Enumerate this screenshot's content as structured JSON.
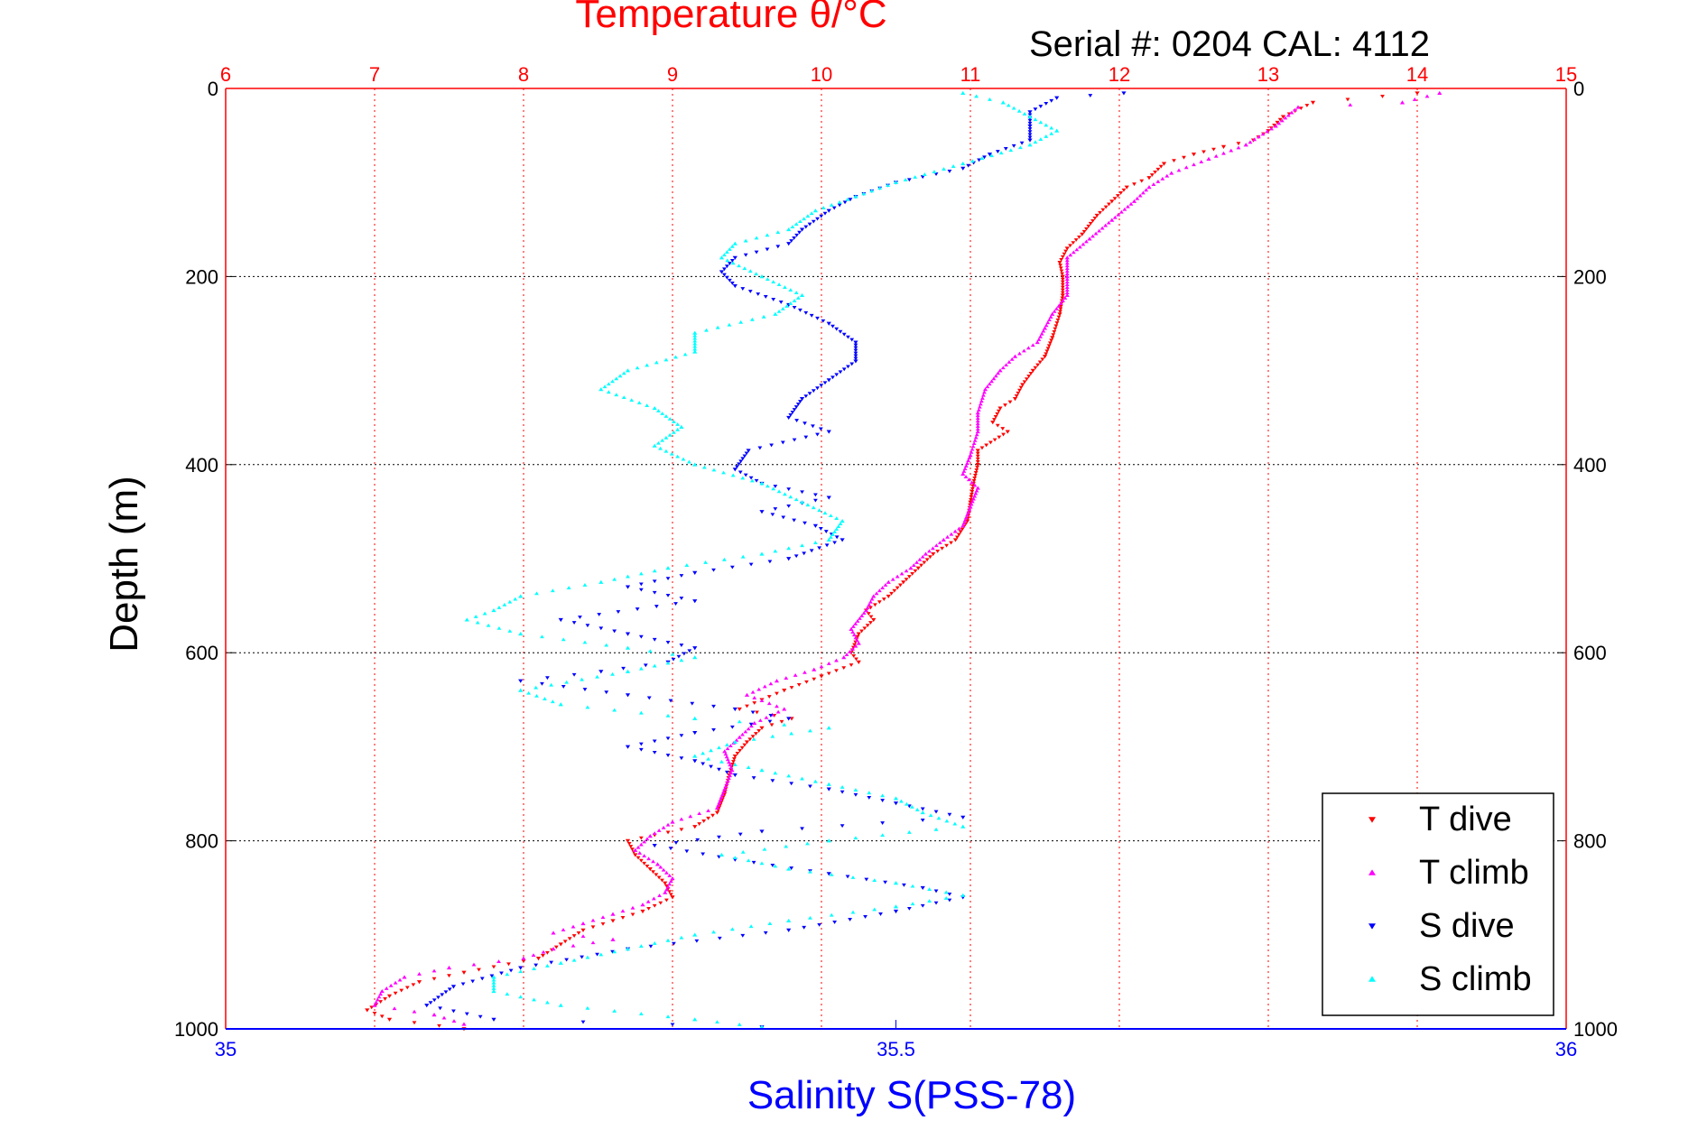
{
  "colors": {
    "t_dive": "#ff0000",
    "t_climb": "#ff00ff",
    "s_dive": "#0000ff",
    "s_climb": "#00ffff",
    "grid_temperature": "#ff0000",
    "grid_depth": "#000000",
    "plot_frame": "#ff0000",
    "bottom_axis": "#0000ff"
  },
  "chart_data": {
    "type": "scatter",
    "title": "Temperature θ/°C",
    "annotation": "Serial #: 0204  CAL: 4112",
    "ylabel": "Depth (m)",
    "xlabel_bottom": "Salinity S(PSS-78)",
    "ylim": [
      1000,
      0
    ],
    "y_reversed": true,
    "x_top_lim": [
      6,
      15
    ],
    "x_bottom_lim": [
      35,
      36
    ],
    "y_ticks": [
      "0",
      "200",
      "400",
      "600",
      "800",
      "1000"
    ],
    "x_top_ticks": [
      "6",
      "7",
      "8",
      "9",
      "10",
      "11",
      "12",
      "13",
      "14",
      "15"
    ],
    "x_bottom_ticks": [
      "35",
      "35.5",
      "36"
    ],
    "grid": true,
    "legend_position": "bottom-right",
    "series": [
      {
        "name": "T dive",
        "axis": "temperature",
        "marker": "triangle-down",
        "points": [
          [
            14.0,
            5
          ],
          [
            13.3,
            15
          ],
          [
            13.1,
            30
          ],
          [
            13.0,
            45
          ],
          [
            12.9,
            55
          ],
          [
            12.7,
            62
          ],
          [
            12.5,
            70
          ],
          [
            12.3,
            80
          ],
          [
            12.2,
            95
          ],
          [
            12.05,
            105
          ],
          [
            11.95,
            120
          ],
          [
            11.85,
            135
          ],
          [
            11.75,
            155
          ],
          [
            11.65,
            170
          ],
          [
            11.6,
            185
          ],
          [
            11.62,
            200
          ],
          [
            11.62,
            220
          ],
          [
            11.6,
            240
          ],
          [
            11.55,
            265
          ],
          [
            11.5,
            285
          ],
          [
            11.42,
            300
          ],
          [
            11.35,
            315
          ],
          [
            11.3,
            330
          ],
          [
            11.2,
            340
          ],
          [
            11.15,
            355
          ],
          [
            11.25,
            365
          ],
          [
            11.05,
            385
          ],
          [
            11.05,
            400
          ],
          [
            11.02,
            420
          ],
          [
            11.0,
            440
          ],
          [
            10.98,
            460
          ],
          [
            10.9,
            480
          ],
          [
            10.75,
            495
          ],
          [
            10.65,
            510
          ],
          [
            10.55,
            525
          ],
          [
            10.45,
            540
          ],
          [
            10.3,
            555
          ],
          [
            10.35,
            565
          ],
          [
            10.25,
            580
          ],
          [
            10.2,
            600
          ],
          [
            10.25,
            610
          ],
          [
            10.0,
            625
          ],
          [
            9.75,
            640
          ],
          [
            9.6,
            650
          ],
          [
            9.45,
            660
          ],
          [
            9.8,
            670
          ],
          [
            9.6,
            680
          ],
          [
            9.5,
            695
          ],
          [
            9.42,
            710
          ],
          [
            9.38,
            730
          ],
          [
            9.35,
            750
          ],
          [
            9.3,
            770
          ],
          [
            9.15,
            785
          ],
          [
            8.7,
            800
          ],
          [
            8.75,
            815
          ],
          [
            8.85,
            830
          ],
          [
            8.95,
            845
          ],
          [
            9.0,
            860
          ],
          [
            8.8,
            875
          ],
          [
            8.6,
            885
          ],
          [
            8.4,
            895
          ],
          [
            8.25,
            910
          ],
          [
            8.1,
            925
          ],
          [
            7.6,
            940
          ],
          [
            7.3,
            950
          ],
          [
            7.1,
            965
          ],
          [
            6.95,
            980
          ],
          [
            7.1,
            990
          ],
          [
            7.6,
            1000
          ]
        ]
      },
      {
        "name": "T climb",
        "axis": "temperature",
        "marker": "triangle-up",
        "points": [
          [
            14.15,
            5
          ],
          [
            13.9,
            15
          ],
          [
            13.2,
            20
          ],
          [
            13.05,
            40
          ],
          [
            12.85,
            60
          ],
          [
            12.6,
            75
          ],
          [
            12.35,
            90
          ],
          [
            12.2,
            105
          ],
          [
            12.1,
            120
          ],
          [
            11.95,
            140
          ],
          [
            11.8,
            160
          ],
          [
            11.65,
            180
          ],
          [
            11.65,
            200
          ],
          [
            11.65,
            220
          ],
          [
            11.55,
            240
          ],
          [
            11.5,
            255
          ],
          [
            11.45,
            270
          ],
          [
            11.3,
            285
          ],
          [
            11.2,
            300
          ],
          [
            11.1,
            320
          ],
          [
            11.05,
            345
          ],
          [
            11.05,
            365
          ],
          [
            11.0,
            390
          ],
          [
            10.95,
            410
          ],
          [
            11.05,
            425
          ],
          [
            11.0,
            445
          ],
          [
            10.95,
            465
          ],
          [
            10.82,
            480
          ],
          [
            10.7,
            495
          ],
          [
            10.6,
            510
          ],
          [
            10.45,
            525
          ],
          [
            10.35,
            540
          ],
          [
            10.3,
            555
          ],
          [
            10.2,
            575
          ],
          [
            10.25,
            590
          ],
          [
            10.15,
            605
          ],
          [
            9.95,
            618
          ],
          [
            9.7,
            630
          ],
          [
            9.5,
            645
          ],
          [
            9.75,
            660
          ],
          [
            9.55,
            675
          ],
          [
            9.45,
            690
          ],
          [
            9.35,
            705
          ],
          [
            9.4,
            725
          ],
          [
            9.35,
            745
          ],
          [
            9.3,
            765
          ],
          [
            9.0,
            780
          ],
          [
            8.85,
            795
          ],
          [
            8.75,
            810
          ],
          [
            8.9,
            825
          ],
          [
            9.0,
            840
          ],
          [
            8.95,
            855
          ],
          [
            8.8,
            868
          ],
          [
            8.6,
            878
          ],
          [
            8.4,
            888
          ],
          [
            8.2,
            898
          ],
          [
            8.6,
            905
          ],
          [
            8.2,
            915
          ],
          [
            8.0,
            925
          ],
          [
            7.5,
            935
          ],
          [
            7.2,
            945
          ],
          [
            7.05,
            960
          ],
          [
            7.0,
            975
          ],
          [
            7.4,
            985
          ],
          [
            7.6,
            995
          ]
        ]
      },
      {
        "name": "S dive",
        "axis": "salinity",
        "marker": "triangle-down",
        "points": [
          [
            35.67,
            5
          ],
          [
            35.62,
            10
          ],
          [
            35.6,
            25
          ],
          [
            35.6,
            40
          ],
          [
            35.6,
            55
          ],
          [
            35.57,
            70
          ],
          [
            35.55,
            85
          ],
          [
            35.5,
            100
          ],
          [
            35.47,
            115
          ],
          [
            35.45,
            130
          ],
          [
            35.43,
            150
          ],
          [
            35.42,
            165
          ],
          [
            35.38,
            180
          ],
          [
            35.37,
            195
          ],
          [
            35.38,
            210
          ],
          [
            35.42,
            230
          ],
          [
            35.45,
            250
          ],
          [
            35.47,
            270
          ],
          [
            35.47,
            290
          ],
          [
            35.45,
            310
          ],
          [
            35.43,
            330
          ],
          [
            35.42,
            350
          ],
          [
            35.45,
            365
          ],
          [
            35.39,
            385
          ],
          [
            35.38,
            405
          ],
          [
            35.4,
            420
          ],
          [
            35.45,
            435
          ],
          [
            35.4,
            450
          ],
          [
            35.44,
            465
          ],
          [
            35.46,
            480
          ],
          [
            35.42,
            500
          ],
          [
            35.35,
            515
          ],
          [
            35.3,
            530
          ],
          [
            35.35,
            545
          ],
          [
            35.25,
            565
          ],
          [
            35.3,
            580
          ],
          [
            35.35,
            595
          ],
          [
            35.33,
            610
          ],
          [
            35.28,
            620
          ],
          [
            35.22,
            630
          ],
          [
            35.3,
            645
          ],
          [
            35.38,
            660
          ],
          [
            35.42,
            670
          ],
          [
            35.35,
            685
          ],
          [
            35.3,
            700
          ],
          [
            35.35,
            715
          ],
          [
            35.38,
            730
          ],
          [
            35.45,
            745
          ],
          [
            35.5,
            760
          ],
          [
            35.55,
            775
          ],
          [
            35.4,
            790
          ],
          [
            35.32,
            805
          ],
          [
            35.38,
            820
          ],
          [
            35.45,
            835
          ],
          [
            35.52,
            850
          ],
          [
            35.55,
            860
          ],
          [
            35.5,
            875
          ],
          [
            35.42,
            895
          ],
          [
            35.3,
            915
          ],
          [
            35.22,
            935
          ],
          [
            35.17,
            955
          ],
          [
            35.15,
            975
          ],
          [
            35.2,
            990
          ],
          [
            35.4,
            998
          ]
        ]
      },
      {
        "name": "S climb",
        "axis": "salinity",
        "marker": "triangle-up",
        "points": [
          [
            35.55,
            5
          ],
          [
            35.58,
            15
          ],
          [
            35.6,
            30
          ],
          [
            35.62,
            45
          ],
          [
            35.6,
            60
          ],
          [
            35.55,
            80
          ],
          [
            35.5,
            100
          ],
          [
            35.47,
            115
          ],
          [
            35.44,
            130
          ],
          [
            35.42,
            150
          ],
          [
            35.38,
            165
          ],
          [
            35.37,
            180
          ],
          [
            35.4,
            200
          ],
          [
            35.43,
            220
          ],
          [
            35.41,
            240
          ],
          [
            35.35,
            260
          ],
          [
            35.35,
            280
          ],
          [
            35.3,
            300
          ],
          [
            35.28,
            320
          ],
          [
            35.32,
            340
          ],
          [
            35.34,
            360
          ],
          [
            35.32,
            380
          ],
          [
            35.35,
            400
          ],
          [
            35.4,
            420
          ],
          [
            35.43,
            440
          ],
          [
            35.46,
            460
          ],
          [
            35.45,
            480
          ],
          [
            35.4,
            495
          ],
          [
            35.33,
            510
          ],
          [
            35.28,
            525
          ],
          [
            35.22,
            540
          ],
          [
            35.2,
            555
          ],
          [
            35.18,
            565
          ],
          [
            35.22,
            580
          ],
          [
            35.3,
            595
          ],
          [
            35.35,
            605
          ],
          [
            35.3,
            620
          ],
          [
            35.22,
            640
          ],
          [
            35.25,
            655
          ],
          [
            35.35,
            670
          ],
          [
            35.45,
            680
          ],
          [
            35.38,
            695
          ],
          [
            35.35,
            710
          ],
          [
            35.4,
            725
          ],
          [
            35.45,
            740
          ],
          [
            35.5,
            755
          ],
          [
            35.52,
            770
          ],
          [
            35.55,
            785
          ],
          [
            35.45,
            800
          ],
          [
            35.37,
            815
          ],
          [
            35.42,
            830
          ],
          [
            35.5,
            845
          ],
          [
            35.55,
            858
          ],
          [
            35.5,
            870
          ],
          [
            35.42,
            885
          ],
          [
            35.35,
            900
          ],
          [
            35.3,
            915
          ],
          [
            35.25,
            930
          ],
          [
            35.2,
            945
          ],
          [
            35.2,
            960
          ],
          [
            35.25,
            975
          ],
          [
            35.35,
            990
          ],
          [
            35.4,
            998
          ]
        ]
      }
    ]
  }
}
